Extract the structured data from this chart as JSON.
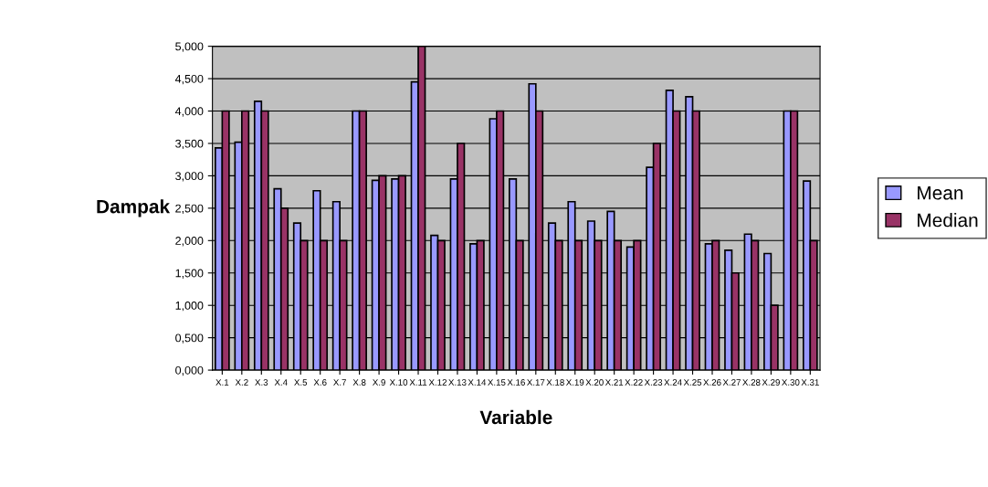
{
  "chart_data": {
    "type": "bar",
    "xlabel": "Variable",
    "ylabel": "Dampak",
    "categories": [
      "X.1",
      "X.2",
      "X.3",
      "X.4",
      "X.5",
      "X.6",
      "X.7",
      "X.8",
      "X.9",
      "X.10",
      "X.11",
      "X.12",
      "X.13",
      "X.14",
      "X.15",
      "X.16",
      "X.17",
      "X.18",
      "X.19",
      "X.20",
      "X.21",
      "X.22",
      "X.23",
      "X.24",
      "X.25",
      "X.26",
      "X.27",
      "X.28",
      "X.29",
      "X.30",
      "X.31"
    ],
    "series": [
      {
        "name": "Mean",
        "color": "#9999ff",
        "values": [
          3.43,
          3.52,
          4.15,
          2.8,
          2.27,
          2.77,
          2.6,
          4.0,
          2.93,
          2.95,
          4.45,
          2.08,
          2.95,
          1.95,
          3.88,
          2.95,
          4.42,
          2.27,
          2.6,
          2.3,
          2.45,
          1.9,
          3.13,
          4.32,
          4.22,
          1.95,
          1.85,
          2.1,
          1.8,
          4.0,
          2.92
        ]
      },
      {
        "name": "Median",
        "color": "#993366",
        "values": [
          4,
          4,
          4,
          2.5,
          2,
          2,
          2,
          4,
          3,
          3,
          5,
          2,
          3.5,
          2,
          4,
          2,
          4,
          2,
          2,
          2,
          2,
          2,
          3.5,
          4,
          4,
          2,
          1.5,
          2,
          1,
          4,
          2
        ]
      }
    ],
    "ylim": [
      0,
      5
    ],
    "yticks": [
      {
        "value": 0,
        "label": "0,000"
      },
      {
        "value": 0.5,
        "label": "0,500"
      },
      {
        "value": 1,
        "label": "1,000"
      },
      {
        "value": 1.5,
        "label": "1,500"
      },
      {
        "value": 2,
        "label": "2,000"
      },
      {
        "value": 2.5,
        "label": "2,500"
      },
      {
        "value": 3,
        "label": "3,000"
      },
      {
        "value": 3.5,
        "label": "3,500"
      },
      {
        "value": 4,
        "label": "4,000"
      },
      {
        "value": 4.5,
        "label": "4,500"
      },
      {
        "value": 5,
        "label": "5,000"
      }
    ],
    "grid": "y",
    "legend": "right"
  }
}
